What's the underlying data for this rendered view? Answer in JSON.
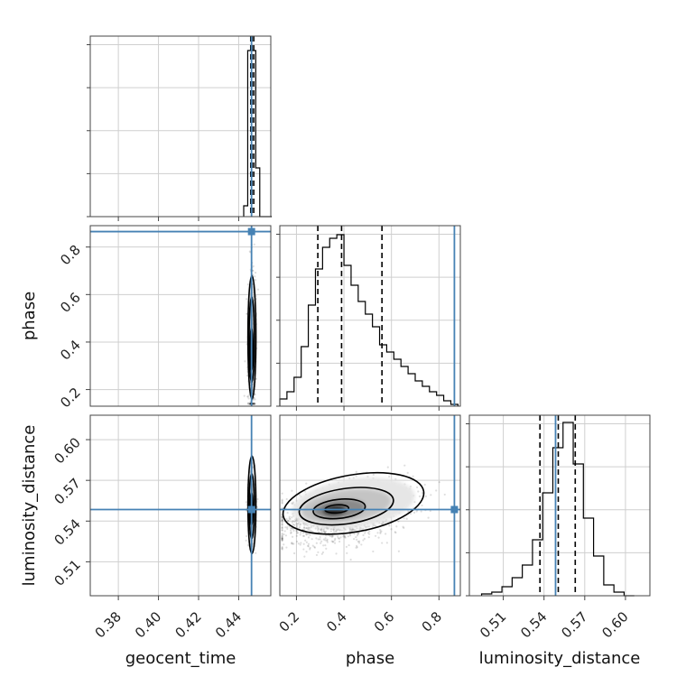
{
  "chart_data": {
    "type": "corner",
    "parameters": [
      "geocent_time",
      "phase",
      "luminosity_distance"
    ],
    "ranges": {
      "geocent_time": [
        0.366,
        0.456
      ],
      "phase": [
        0.13,
        0.89
      ],
      "luminosity_distance": [
        0.485,
        0.618
      ]
    },
    "ticks": {
      "geocent_time": [
        0.38,
        0.4,
        0.42,
        0.44
      ],
      "phase": [
        0.2,
        0.4,
        0.6,
        0.8
      ],
      "luminosity_distance": [
        0.51,
        0.54,
        0.57,
        0.6
      ]
    },
    "tick_labels": {
      "geocent_time": [
        "0.38",
        "0.40",
        "0.42",
        "0.44"
      ],
      "phase": [
        "0.2",
        "0.4",
        "0.6",
        "0.8"
      ],
      "luminosity_distance": [
        "0.51",
        "0.54",
        "0.57",
        "0.60"
      ]
    },
    "injection": {
      "geocent_time": 0.4464,
      "phase": 0.865,
      "luminosity_distance": 0.5485
    },
    "quantiles": {
      "geocent_time": [
        0.446,
        0.4466,
        0.4475
      ],
      "phase": [
        0.29,
        0.39,
        0.56
      ],
      "luminosity_distance": [
        0.537,
        0.5505,
        0.563
      ]
    },
    "histograms": {
      "geocent_time": {
        "edges": [
          0.4425,
          0.4445,
          0.4465,
          0.4485,
          0.4505,
          0.4525,
          0.4545,
          0.4565
        ],
        "counts": [
          0.06,
          0.92,
          0.92,
          0.27,
          0.0,
          0.0,
          0.0
        ]
      },
      "phase": {
        "edges": [
          0.13,
          0.16,
          0.19,
          0.22,
          0.25,
          0.28,
          0.31,
          0.34,
          0.37,
          0.4,
          0.43,
          0.46,
          0.49,
          0.52,
          0.55,
          0.58,
          0.61,
          0.64,
          0.67,
          0.7,
          0.73,
          0.76,
          0.79,
          0.82,
          0.85,
          0.88
        ],
        "counts": [
          0.04,
          0.08,
          0.16,
          0.33,
          0.56,
          0.76,
          0.88,
          0.93,
          0.95,
          0.78,
          0.67,
          0.58,
          0.51,
          0.44,
          0.34,
          0.3,
          0.26,
          0.22,
          0.18,
          0.14,
          0.11,
          0.08,
          0.06,
          0.03,
          0.01
        ]
      },
      "luminosity_distance": {
        "edges": [
          0.494,
          0.5015,
          0.509,
          0.5165,
          0.524,
          0.5315,
          0.539,
          0.5465,
          0.554,
          0.5615,
          0.569,
          0.5765,
          0.584,
          0.5915,
          0.599,
          0.6065
        ],
        "counts": [
          0.01,
          0.02,
          0.05,
          0.1,
          0.17,
          0.31,
          0.57,
          0.82,
          0.96,
          0.73,
          0.43,
          0.22,
          0.06,
          0.02,
          0.0
        ]
      }
    },
    "grid": true
  }
}
